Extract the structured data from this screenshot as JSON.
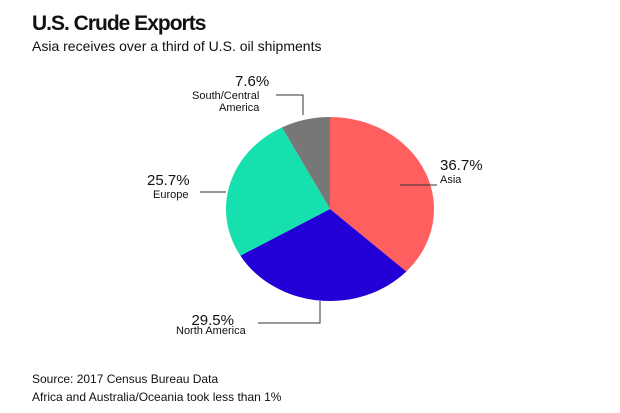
{
  "header": {
    "title": "U.S. Crude Exports",
    "subtitle": "Asia receives over a third of U.S. oil shipments"
  },
  "footer": {
    "source": "Source: 2017 Census Bureau Data",
    "note": "Africa and Australia/Oceania took less than 1%"
  },
  "slices": [
    {
      "name": "Asia",
      "pct": "36.7%",
      "value": 36.7,
      "color": "#FF5F5F"
    },
    {
      "name": "North America",
      "pct": "29.5%",
      "value": 29.5,
      "color": "#2200D6"
    },
    {
      "name": "Europe",
      "pct": "25.7%",
      "value": 25.7,
      "color": "#16E0AE"
    },
    {
      "name": "South/Central",
      "name2": "America",
      "pct": "7.6%",
      "value": 7.6,
      "color": "#777777"
    }
  ],
  "chart_data": {
    "type": "pie",
    "title": "U.S. Crude Exports",
    "subtitle": "Asia receives over a third of U.S. oil shipments",
    "categories": [
      "Asia",
      "North America",
      "Europe",
      "South/Central America"
    ],
    "values": [
      36.7,
      29.5,
      25.7,
      7.6
    ],
    "colors": [
      "#FF5F5F",
      "#2200D6",
      "#16E0AE",
      "#777777"
    ],
    "annotations": [
      "Source: 2017 Census Bureau Data",
      "Africa and Australia/Oceania took less than 1%"
    ]
  }
}
